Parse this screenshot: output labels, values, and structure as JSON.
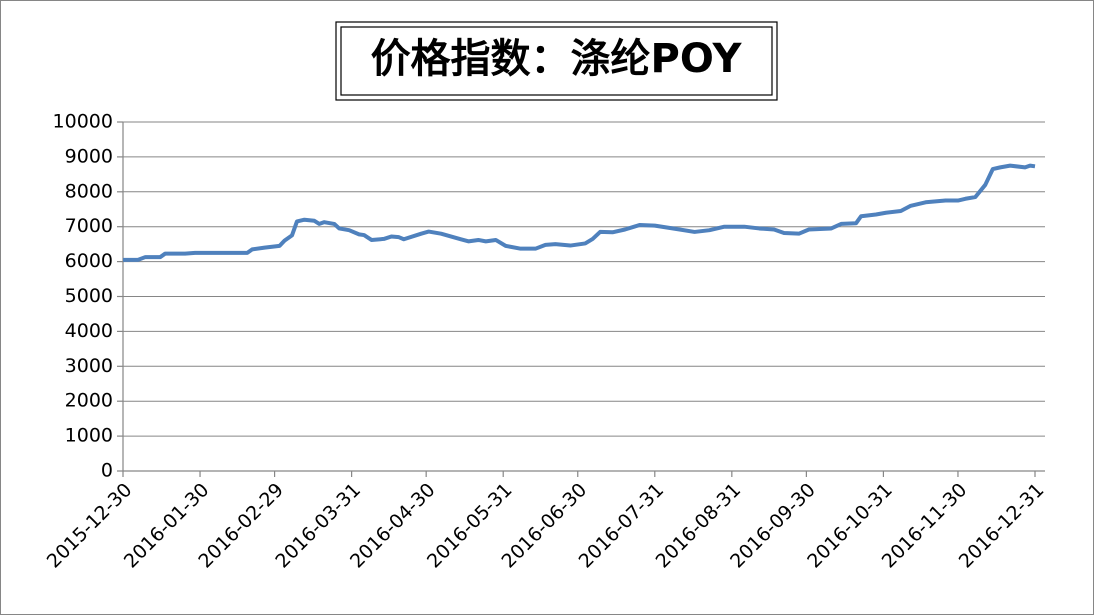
{
  "chart_data": {
    "type": "line",
    "title": "价格指数：涤纶POY",
    "x": [
      "2015-12-30",
      "2016-01-05",
      "2016-01-08",
      "2016-01-14",
      "2016-01-16",
      "2016-01-24",
      "2016-01-28",
      "2016-02-18",
      "2016-02-20",
      "2016-02-25",
      "2016-03-02",
      "2016-03-04",
      "2016-03-07",
      "2016-03-09",
      "2016-03-12",
      "2016-03-16",
      "2016-03-18",
      "2016-03-20",
      "2016-03-24",
      "2016-03-26",
      "2016-03-30",
      "2016-04-03",
      "2016-04-05",
      "2016-04-08",
      "2016-04-13",
      "2016-04-16",
      "2016-04-19",
      "2016-04-21",
      "2016-04-28",
      "2016-05-01",
      "2016-05-06",
      "2016-05-14",
      "2016-05-17",
      "2016-05-21",
      "2016-05-24",
      "2016-05-28",
      "2016-06-01",
      "2016-06-07",
      "2016-06-13",
      "2016-06-17",
      "2016-06-21",
      "2016-06-27",
      "2016-07-03",
      "2016-07-06",
      "2016-07-09",
      "2016-07-14",
      "2016-07-19",
      "2016-07-25",
      "2016-07-31",
      "2016-08-10",
      "2016-08-16",
      "2016-08-22",
      "2016-08-28",
      "2016-09-05",
      "2016-09-11",
      "2016-09-17",
      "2016-09-21",
      "2016-09-27",
      "2016-10-01",
      "2016-10-10",
      "2016-10-14",
      "2016-10-20",
      "2016-10-22",
      "2016-10-28",
      "2016-11-01",
      "2016-11-07",
      "2016-11-11",
      "2016-11-17",
      "2016-11-25",
      "2016-11-30",
      "2016-12-03",
      "2016-12-07",
      "2016-12-11",
      "2016-12-14",
      "2016-12-17",
      "2016-12-21",
      "2016-12-27",
      "2016-12-29",
      "2016-12-31"
    ],
    "series": [
      {
        "name": "涤纶POY",
        "color": "#4f81bd",
        "values": [
          6050,
          6050,
          6130,
          6130,
          6230,
          6230,
          6250,
          6250,
          6350,
          6400,
          6450,
          6600,
          6750,
          7150,
          7200,
          7170,
          7080,
          7130,
          7080,
          6950,
          6900,
          6780,
          6760,
          6620,
          6650,
          6720,
          6700,
          6640,
          6800,
          6860,
          6800,
          6640,
          6580,
          6620,
          6580,
          6620,
          6450,
          6370,
          6370,
          6480,
          6500,
          6460,
          6520,
          6650,
          6850,
          6840,
          6920,
          7050,
          7030,
          6920,
          6850,
          6900,
          7000,
          7000,
          6950,
          6920,
          6820,
          6800,
          6920,
          6950,
          7080,
          7100,
          7300,
          7350,
          7400,
          7450,
          7600,
          7700,
          7750,
          7750,
          7800,
          7850,
          8200,
          8650,
          8700,
          8750,
          8700,
          8750,
          8730
        ]
      }
    ],
    "xlim": [
      "2015-12-30",
      "2016-12-31"
    ],
    "xticks": [
      "2015-12-30",
      "2016-01-30",
      "2016-02-29",
      "2016-03-31",
      "2016-04-30",
      "2016-05-31",
      "2016-06-30",
      "2016-07-31",
      "2016-08-31",
      "2016-09-30",
      "2016-10-31",
      "2016-11-30",
      "2016-12-31"
    ],
    "ylim": [
      0,
      10000
    ],
    "yticks": [
      0,
      1000,
      2000,
      3000,
      4000,
      5000,
      6000,
      7000,
      8000,
      9000,
      10000
    ],
    "grid": true
  }
}
